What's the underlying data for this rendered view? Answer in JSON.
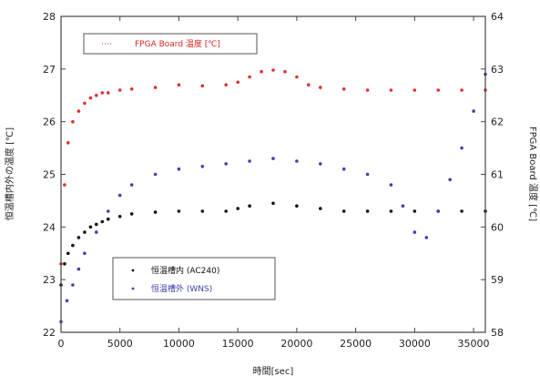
{
  "chart_data": {
    "type": "scatter",
    "title": "",
    "xlabel": "時間[sec]",
    "ylabel_left": "恒温槽内外の温度 [℃]",
    "ylabel_right": "FPGA Board 温度 [℃]",
    "xlim": [
      0,
      36000
    ],
    "ylim_left": [
      22,
      28
    ],
    "ylim_right": [
      58,
      64
    ],
    "x_ticks": [
      0,
      5000,
      10000,
      15000,
      20000,
      25000,
      30000,
      35000
    ],
    "y_ticks_left": [
      22,
      23,
      24,
      25,
      26,
      27,
      28
    ],
    "y_ticks_right": [
      58,
      59,
      60,
      61,
      62,
      63,
      64
    ],
    "grid": false,
    "legends": [
      {
        "placement": "top-left",
        "entries": [
          {
            "series": 0,
            "label": "FPGA Board 温度 [℃]"
          }
        ]
      },
      {
        "placement": "bottom-left",
        "entries": [
          {
            "series": 1,
            "label": "恒温槽内 (AC240)"
          },
          {
            "series": 2,
            "label": "恒温槽外 (WNS)"
          }
        ]
      }
    ],
    "series": [
      {
        "name": "FPGA Board 温度 [℃]",
        "axis": "right",
        "color": "#e03030",
        "x": [
          0,
          300,
          600,
          1000,
          1500,
          2000,
          2500,
          3000,
          3500,
          4000,
          5000,
          6000,
          8000,
          10000,
          12000,
          14000,
          15000,
          16000,
          17000,
          18000,
          19000,
          20000,
          21000,
          22000,
          24000,
          26000,
          28000,
          30000,
          32000,
          34000,
          36000
        ],
        "y": [
          59.3,
          60.8,
          61.6,
          62.0,
          62.2,
          62.35,
          62.45,
          62.5,
          62.55,
          62.55,
          62.6,
          62.62,
          62.65,
          62.7,
          62.68,
          62.7,
          62.75,
          62.85,
          62.95,
          62.98,
          62.95,
          62.85,
          62.7,
          62.65,
          62.62,
          62.6,
          62.6,
          62.6,
          62.6,
          62.6,
          62.6
        ]
      },
      {
        "name": "恒温槽内 (AC240)",
        "axis": "left",
        "color": "#111111",
        "x": [
          0,
          300,
          600,
          1000,
          1500,
          2000,
          2500,
          3000,
          3500,
          4000,
          5000,
          6000,
          8000,
          10000,
          12000,
          14000,
          15000,
          16000,
          18000,
          20000,
          22000,
          24000,
          26000,
          28000,
          30000,
          32000,
          34000,
          36000
        ],
        "y": [
          22.9,
          23.3,
          23.5,
          23.65,
          23.8,
          23.9,
          24.0,
          24.05,
          24.1,
          24.15,
          24.2,
          24.25,
          24.28,
          24.3,
          24.3,
          24.3,
          24.35,
          24.4,
          24.45,
          24.4,
          24.35,
          24.3,
          24.3,
          24.3,
          24.3,
          24.3,
          24.3,
          24.3
        ]
      },
      {
        "name": "恒温槽外 (WNS)",
        "axis": "left",
        "color": "#4040b0",
        "x": [
          0,
          500,
          1000,
          1500,
          2000,
          3000,
          4000,
          5000,
          6000,
          8000,
          10000,
          12000,
          14000,
          16000,
          18000,
          20000,
          22000,
          24000,
          26000,
          28000,
          29000,
          30000,
          31000,
          32000,
          33000,
          34000,
          35000,
          36000
        ],
        "y": [
          22.2,
          22.6,
          22.9,
          23.2,
          23.5,
          23.9,
          24.3,
          24.6,
          24.8,
          25.0,
          25.1,
          25.15,
          25.2,
          25.25,
          25.3,
          25.25,
          25.2,
          25.1,
          25.0,
          24.8,
          24.4,
          23.9,
          23.8,
          24.3,
          24.9,
          25.5,
          26.2,
          26.9
        ]
      }
    ]
  }
}
